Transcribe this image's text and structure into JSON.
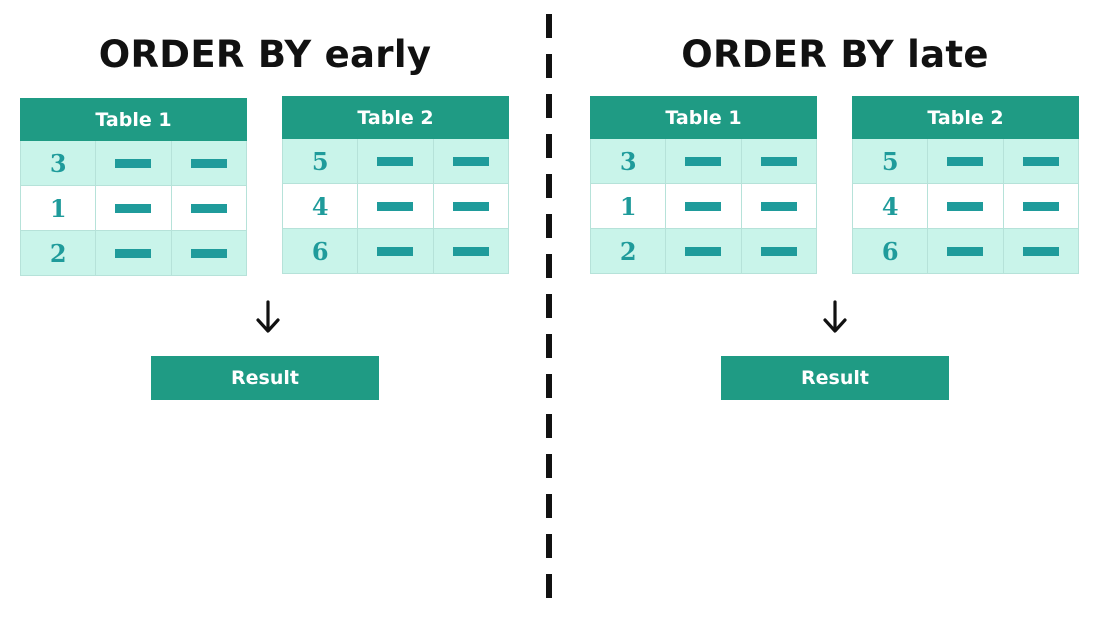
{
  "panels": [
    {
      "title": "ORDER BY early",
      "tables": [
        {
          "header": "Table 1",
          "keys": [
            "3",
            "1",
            "2"
          ]
        },
        {
          "header": "Table 2",
          "keys": [
            "5",
            "4",
            "6"
          ]
        }
      ],
      "result_label": "Result"
    },
    {
      "title": "ORDER BY late",
      "tables": [
        {
          "header": "Table 1",
          "keys": [
            "3",
            "1",
            "2"
          ]
        },
        {
          "header": "Table 2",
          "keys": [
            "5",
            "4",
            "6"
          ]
        }
      ],
      "result_label": "Result"
    }
  ],
  "colors": {
    "header": "#1f9b84",
    "accent": "#1f9b9b",
    "row_shaded": "#c9f4ea",
    "divider": "#111111"
  },
  "icons": [
    "arrow-down-icon",
    "cell-placeholder-icon"
  ]
}
